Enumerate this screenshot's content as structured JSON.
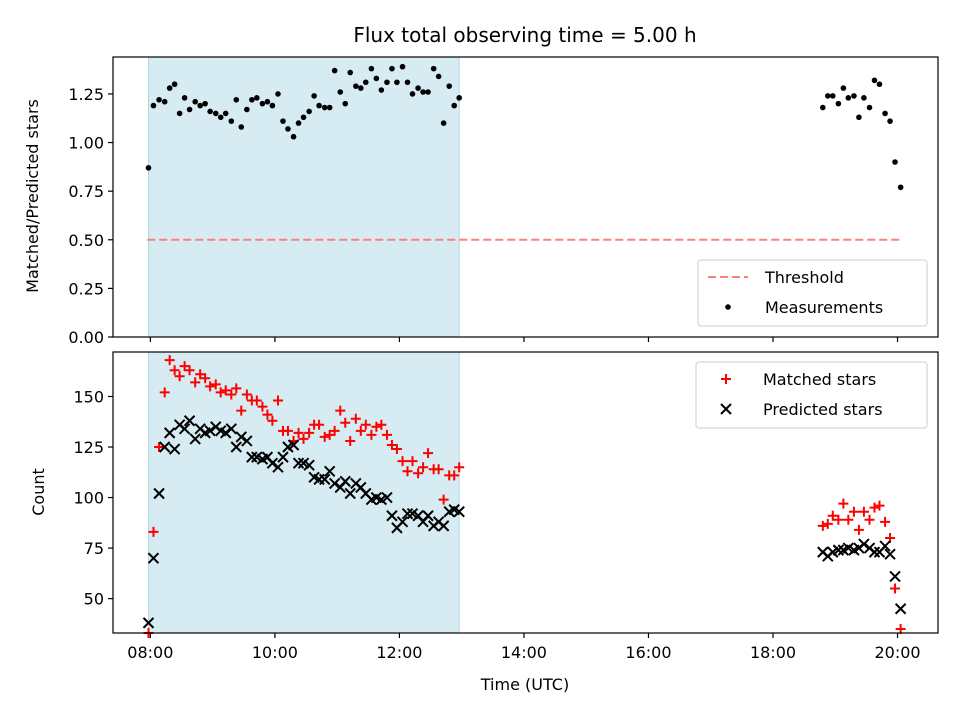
{
  "chart_data": [
    {
      "type": "scatter",
      "title": "Flux total observing time = 5.00 h",
      "xlabel": "",
      "ylabel": "Matched/Predicted stars",
      "xlim": [
        7.4,
        20.65
      ],
      "ylim": [
        0.0,
        1.44
      ],
      "x_ticks": [
        "08:00",
        "10:00",
        "12:00",
        "14:00",
        "16:00",
        "18:00",
        "20:00"
      ],
      "y_ticks": [
        "0.00",
        "0.25",
        "0.50",
        "0.75",
        "1.00",
        "1.25"
      ],
      "shaded_span": [
        7.97,
        12.96
      ],
      "colors": {
        "shade": "#add8e6",
        "threshold": "#ff7f7f",
        "measurements": "#000000"
      },
      "legend": {
        "position": "lower-right",
        "entries": [
          "Threshold",
          "Measurements"
        ]
      },
      "threshold": {
        "name": "Threshold",
        "y": 0.5,
        "x_range": [
          7.95,
          20.05
        ]
      },
      "series": [
        {
          "name": "Measurements",
          "points": [
            [
              7.97,
              0.87
            ],
            [
              8.05,
              1.19
            ],
            [
              8.14,
              1.22
            ],
            [
              8.23,
              1.21
            ],
            [
              8.31,
              1.28
            ],
            [
              8.39,
              1.3
            ],
            [
              8.47,
              1.15
            ],
            [
              8.55,
              1.23
            ],
            [
              8.63,
              1.17
            ],
            [
              8.72,
              1.21
            ],
            [
              8.8,
              1.19
            ],
            [
              8.88,
              1.2
            ],
            [
              8.96,
              1.16
            ],
            [
              9.05,
              1.15
            ],
            [
              9.13,
              1.13
            ],
            [
              9.21,
              1.15
            ],
            [
              9.3,
              1.11
            ],
            [
              9.38,
              1.22
            ],
            [
              9.46,
              1.08
            ],
            [
              9.55,
              1.17
            ],
            [
              9.63,
              1.22
            ],
            [
              9.71,
              1.23
            ],
            [
              9.8,
              1.2
            ],
            [
              9.88,
              1.21
            ],
            [
              9.96,
              1.19
            ],
            [
              10.05,
              1.25
            ],
            [
              10.13,
              1.11
            ],
            [
              10.21,
              1.07
            ],
            [
              10.3,
              1.03
            ],
            [
              10.38,
              1.1
            ],
            [
              10.46,
              1.13
            ],
            [
              10.55,
              1.16
            ],
            [
              10.63,
              1.24
            ],
            [
              10.71,
              1.19
            ],
            [
              10.8,
              1.18
            ],
            [
              10.88,
              1.18
            ],
            [
              10.96,
              1.37
            ],
            [
              11.05,
              1.26
            ],
            [
              11.13,
              1.2
            ],
            [
              11.21,
              1.36
            ],
            [
              11.3,
              1.29
            ],
            [
              11.38,
              1.28
            ],
            [
              11.46,
              1.31
            ],
            [
              11.55,
              1.38
            ],
            [
              11.63,
              1.33
            ],
            [
              11.71,
              1.27
            ],
            [
              11.8,
              1.31
            ],
            [
              11.88,
              1.38
            ],
            [
              11.96,
              1.31
            ],
            [
              12.05,
              1.39
            ],
            [
              12.13,
              1.31
            ],
            [
              12.21,
              1.25
            ],
            [
              12.3,
              1.28
            ],
            [
              12.38,
              1.26
            ],
            [
              12.46,
              1.26
            ],
            [
              12.55,
              1.38
            ],
            [
              12.63,
              1.34
            ],
            [
              12.71,
              1.1
            ],
            [
              12.8,
              1.29
            ],
            [
              12.88,
              1.19
            ],
            [
              12.96,
              1.23
            ],
            [
              18.8,
              1.18
            ],
            [
              18.88,
              1.24
            ],
            [
              18.96,
              1.24
            ],
            [
              19.05,
              1.2
            ],
            [
              19.13,
              1.28
            ],
            [
              19.21,
              1.23
            ],
            [
              19.3,
              1.24
            ],
            [
              19.38,
              1.13
            ],
            [
              19.46,
              1.23
            ],
            [
              19.55,
              1.18
            ],
            [
              19.63,
              1.32
            ],
            [
              19.71,
              1.3
            ],
            [
              19.8,
              1.15
            ],
            [
              19.88,
              1.11
            ],
            [
              19.96,
              0.9
            ],
            [
              20.05,
              0.77
            ]
          ]
        }
      ]
    },
    {
      "type": "scatter",
      "title": "",
      "xlabel": "Time (UTC)",
      "ylabel": "Count",
      "xlim": [
        7.4,
        20.65
      ],
      "ylim": [
        33,
        172
      ],
      "x_ticks": [
        "08:00",
        "10:00",
        "12:00",
        "14:00",
        "16:00",
        "18:00",
        "20:00"
      ],
      "y_ticks": [
        "50",
        "75",
        "100",
        "125",
        "150"
      ],
      "shaded_span": [
        7.97,
        12.96
      ],
      "colors": {
        "shade": "#add8e6",
        "matched": "#ff0000",
        "predicted": "#000000"
      },
      "legend": {
        "position": "upper-right",
        "entries": [
          "Matched stars",
          "Predicted stars"
        ]
      },
      "series": [
        {
          "name": "Matched stars",
          "marker": "plus",
          "points": [
            [
              7.97,
              33
            ],
            [
              8.05,
              83
            ],
            [
              8.14,
              125
            ],
            [
              8.23,
              152
            ],
            [
              8.31,
              168
            ],
            [
              8.39,
              163
            ],
            [
              8.47,
              160
            ],
            [
              8.55,
              165
            ],
            [
              8.63,
              163
            ],
            [
              8.72,
              157
            ],
            [
              8.8,
              161
            ],
            [
              8.88,
              159
            ],
            [
              8.96,
              155
            ],
            [
              9.05,
              156
            ],
            [
              9.13,
              152
            ],
            [
              9.21,
              153
            ],
            [
              9.3,
              151
            ],
            [
              9.38,
              154
            ],
            [
              9.46,
              143
            ],
            [
              9.55,
              151
            ],
            [
              9.63,
              148
            ],
            [
              9.71,
              148
            ],
            [
              9.8,
              145
            ],
            [
              9.88,
              141
            ],
            [
              9.96,
              138
            ],
            [
              10.05,
              148
            ],
            [
              10.13,
              133
            ],
            [
              10.21,
              133
            ],
            [
              10.3,
              128
            ],
            [
              10.38,
              132
            ],
            [
              10.46,
              129
            ],
            [
              10.55,
              132
            ],
            [
              10.63,
              136
            ],
            [
              10.71,
              136
            ],
            [
              10.8,
              130
            ],
            [
              10.88,
              131
            ],
            [
              10.96,
              133
            ],
            [
              11.05,
              143
            ],
            [
              11.13,
              137
            ],
            [
              11.21,
              128
            ],
            [
              11.3,
              139
            ],
            [
              11.38,
              133
            ],
            [
              11.46,
              136
            ],
            [
              11.55,
              131
            ],
            [
              11.63,
              135
            ],
            [
              11.71,
              136
            ],
            [
              11.8,
              131
            ],
            [
              11.88,
              126
            ],
            [
              11.96,
              124
            ],
            [
              12.05,
              118
            ],
            [
              12.13,
              113
            ],
            [
              12.21,
              118
            ],
            [
              12.3,
              112
            ],
            [
              12.38,
              115
            ],
            [
              12.46,
              122
            ],
            [
              12.55,
              114
            ],
            [
              12.63,
              114
            ],
            [
              12.71,
              99
            ],
            [
              12.8,
              111
            ],
            [
              12.88,
              111
            ],
            [
              12.96,
              115
            ],
            [
              18.8,
              86
            ],
            [
              18.88,
              87
            ],
            [
              18.96,
              91
            ],
            [
              19.05,
              89
            ],
            [
              19.13,
              97
            ],
            [
              19.21,
              89
            ],
            [
              19.3,
              93
            ],
            [
              19.38,
              84
            ],
            [
              19.46,
              93
            ],
            [
              19.55,
              89
            ],
            [
              19.63,
              95
            ],
            [
              19.71,
              96
            ],
            [
              19.8,
              88
            ],
            [
              19.88,
              80
            ],
            [
              19.96,
              55
            ],
            [
              20.05,
              35
            ]
          ]
        },
        {
          "name": "Predicted stars",
          "marker": "x",
          "points": [
            [
              7.97,
              38
            ],
            [
              8.05,
              70
            ],
            [
              8.14,
              102
            ],
            [
              8.23,
              125
            ],
            [
              8.31,
              132
            ],
            [
              8.39,
              124
            ],
            [
              8.47,
              136
            ],
            [
              8.55,
              134
            ],
            [
              8.63,
              138
            ],
            [
              8.72,
              129
            ],
            [
              8.8,
              134
            ],
            [
              8.88,
              132
            ],
            [
              8.96,
              133
            ],
            [
              9.05,
              135
            ],
            [
              9.13,
              133
            ],
            [
              9.21,
              132
            ],
            [
              9.3,
              134
            ],
            [
              9.38,
              125
            ],
            [
              9.46,
              130
            ],
            [
              9.55,
              128
            ],
            [
              9.63,
              120
            ],
            [
              9.71,
              120
            ],
            [
              9.8,
              119
            ],
            [
              9.88,
              120
            ],
            [
              9.96,
              117
            ],
            [
              10.05,
              115
            ],
            [
              10.13,
              120
            ],
            [
              10.21,
              125
            ],
            [
              10.3,
              126
            ],
            [
              10.38,
              117
            ],
            [
              10.46,
              117
            ],
            [
              10.55,
              116
            ],
            [
              10.63,
              110
            ],
            [
              10.71,
              109
            ],
            [
              10.8,
              109
            ],
            [
              10.88,
              113
            ],
            [
              10.96,
              107
            ],
            [
              11.05,
              105
            ],
            [
              11.13,
              108
            ],
            [
              11.21,
              102
            ],
            [
              11.3,
              107
            ],
            [
              11.38,
              105
            ],
            [
              11.46,
              102
            ],
            [
              11.55,
              99
            ],
            [
              11.63,
              100
            ],
            [
              11.71,
              99
            ],
            [
              11.8,
              100
            ],
            [
              11.88,
              91
            ],
            [
              11.96,
              85
            ],
            [
              12.05,
              88
            ],
            [
              12.13,
              92
            ],
            [
              12.21,
              92
            ],
            [
              12.3,
              91
            ],
            [
              12.38,
              88
            ],
            [
              12.46,
              91
            ],
            [
              12.55,
              86
            ],
            [
              12.63,
              88
            ],
            [
              12.71,
              86
            ],
            [
              12.8,
              93
            ],
            [
              12.88,
              94
            ],
            [
              12.96,
              93
            ],
            [
              18.8,
              73
            ],
            [
              18.88,
              71
            ],
            [
              18.96,
              73
            ],
            [
              19.05,
              74
            ],
            [
              19.13,
              74
            ],
            [
              19.21,
              75
            ],
            [
              19.3,
              74
            ],
            [
              19.38,
              75
            ],
            [
              19.46,
              77
            ],
            [
              19.55,
              75
            ],
            [
              19.63,
              73
            ],
            [
              19.71,
              73
            ],
            [
              19.8,
              76
            ],
            [
              19.88,
              72
            ],
            [
              19.96,
              61
            ],
            [
              20.05,
              45
            ]
          ]
        }
      ]
    }
  ]
}
